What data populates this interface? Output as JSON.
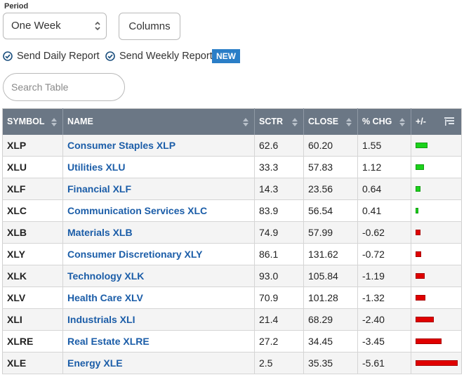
{
  "period": {
    "label": "Period",
    "selected": "One Week"
  },
  "columns_button": "Columns",
  "checks": {
    "daily": "Send Daily Report",
    "weekly": "Send Weekly Report",
    "new_badge": "NEW"
  },
  "search": {
    "placeholder": "Search Table",
    "value": ""
  },
  "colors": {
    "header_bg": "#6b7785",
    "link": "#1b5da8",
    "positive": "#1bd21b",
    "negative": "#e00000",
    "badge": "#2a7ec7"
  },
  "table": {
    "headers": [
      "SYMBOL",
      "NAME",
      "SCTR",
      "CLOSE",
      "% CHG",
      "+/-"
    ],
    "rows": [
      {
        "symbol": "XLP",
        "name": "Consumer Staples XLP",
        "sctr": "62.6",
        "close": "60.20",
        "chg": "1.55"
      },
      {
        "symbol": "XLU",
        "name": "Utilities XLU",
        "sctr": "33.3",
        "close": "57.83",
        "chg": "1.12"
      },
      {
        "symbol": "XLF",
        "name": "Financial XLF",
        "sctr": "14.3",
        "close": "23.56",
        "chg": "0.64"
      },
      {
        "symbol": "XLC",
        "name": "Communication Services XLC",
        "sctr": "83.9",
        "close": "56.54",
        "chg": "0.41"
      },
      {
        "symbol": "XLB",
        "name": "Materials XLB",
        "sctr": "74.9",
        "close": "57.99",
        "chg": "-0.62"
      },
      {
        "symbol": "XLY",
        "name": "Consumer Discretionary XLY",
        "sctr": "86.1",
        "close": "131.62",
        "chg": "-0.72"
      },
      {
        "symbol": "XLK",
        "name": "Technology XLK",
        "sctr": "93.0",
        "close": "105.84",
        "chg": "-1.19"
      },
      {
        "symbol": "XLV",
        "name": "Health Care XLV",
        "sctr": "70.9",
        "close": "101.28",
        "chg": "-1.32"
      },
      {
        "symbol": "XLI",
        "name": "Industrials XLI",
        "sctr": "21.4",
        "close": "68.29",
        "chg": "-2.40"
      },
      {
        "symbol": "XLRE",
        "name": "Real Estate XLRE",
        "sctr": "27.2",
        "close": "34.45",
        "chg": "-3.45"
      },
      {
        "symbol": "XLE",
        "name": "Energy XLE",
        "sctr": "2.5",
        "close": "35.35",
        "chg": "-5.61"
      }
    ]
  }
}
